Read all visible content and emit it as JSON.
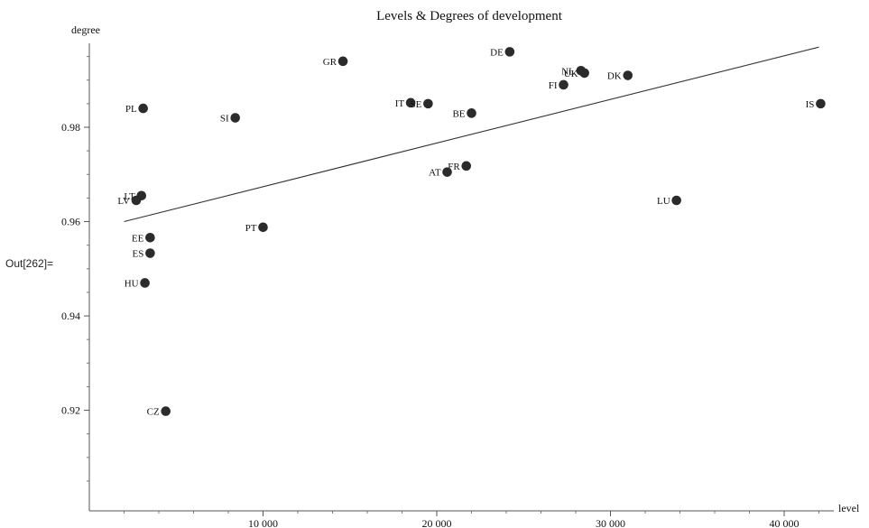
{
  "cell_label": "Out[262]=",
  "chart_data": {
    "type": "scatter",
    "title": "Levels & Degrees of development",
    "xlabel": "level",
    "ylabel": "degree",
    "xlim": [
      0,
      44000
    ],
    "ylim": [
      0.9,
      0.999
    ],
    "x_ticks": [
      10000,
      20000,
      30000,
      40000
    ],
    "x_tick_labels": [
      "10 000",
      "20 000",
      "30 000",
      "40 000"
    ],
    "y_ticks": [
      0.92,
      0.94,
      0.96,
      0.98
    ],
    "y_tick_labels": [
      "0.92",
      "0.94",
      "0.96",
      "0.98"
    ],
    "grid": false,
    "points": [
      {
        "label": "GR",
        "x": 14600,
        "y": 0.994
      },
      {
        "label": "DE",
        "x": 24200,
        "y": 0.996
      },
      {
        "label": "NL",
        "x": 28300,
        "y": 0.992
      },
      {
        "label": "UK",
        "x": 28500,
        "y": 0.9915
      },
      {
        "label": "DK",
        "x": 31000,
        "y": 0.991
      },
      {
        "label": "FI",
        "x": 27300,
        "y": 0.989
      },
      {
        "label": "IT",
        "x": 18500,
        "y": 0.9852
      },
      {
        "label": "SE",
        "x": 19500,
        "y": 0.985
      },
      {
        "label": "BE",
        "x": 22000,
        "y": 0.983
      },
      {
        "label": "PL",
        "x": 3100,
        "y": 0.984
      },
      {
        "label": "SI",
        "x": 8400,
        "y": 0.982
      },
      {
        "label": "IS",
        "x": 42100,
        "y": 0.985
      },
      {
        "label": "FR",
        "x": 21700,
        "y": 0.9718
      },
      {
        "label": "AT",
        "x": 20600,
        "y": 0.9705
      },
      {
        "label": "LT",
        "x": 3000,
        "y": 0.9655
      },
      {
        "label": "LV",
        "x": 2700,
        "y": 0.9645
      },
      {
        "label": "LU",
        "x": 33800,
        "y": 0.9645
      },
      {
        "label": "PT",
        "x": 10000,
        "y": 0.9588
      },
      {
        "label": "EE",
        "x": 3500,
        "y": 0.9566
      },
      {
        "label": "ES",
        "x": 3500,
        "y": 0.9533
      },
      {
        "label": "HU",
        "x": 3200,
        "y": 0.947
      },
      {
        "label": "CZ",
        "x": 4400,
        "y": 0.9198
      }
    ],
    "fit_line": {
      "x": [
        2000,
        42000
      ],
      "y": [
        0.96,
        0.997
      ]
    },
    "point_color": "#2b2b2b",
    "line_color": "#333333"
  }
}
